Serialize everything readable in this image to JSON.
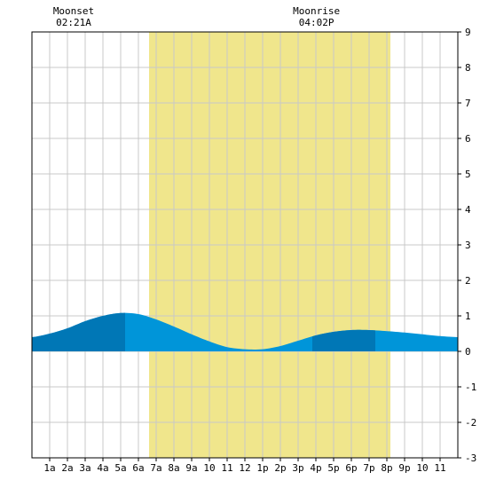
{
  "chart_data": {
    "type": "area",
    "title": "",
    "xlabel": "",
    "ylabel": "",
    "x_hours": [
      0,
      1,
      2,
      3,
      4,
      5,
      6,
      7,
      8,
      9,
      10,
      11,
      12,
      13,
      14,
      15,
      16,
      17,
      18,
      19,
      20,
      21,
      22,
      23,
      24
    ],
    "tide_height": [
      0.4,
      0.5,
      0.65,
      0.85,
      1.0,
      1.08,
      1.05,
      0.9,
      0.7,
      0.48,
      0.28,
      0.12,
      0.06,
      0.06,
      0.15,
      0.3,
      0.45,
      0.55,
      0.6,
      0.6,
      0.57,
      0.53,
      0.48,
      0.43,
      0.4
    ],
    "ylim": [
      -3,
      9
    ],
    "xlim": [
      0,
      24
    ],
    "y_ticks": [
      -3,
      -2,
      -1,
      0,
      1,
      2,
      3,
      4,
      5,
      6,
      7,
      8,
      9
    ],
    "x_tick_labels": [
      "1a",
      "2a",
      "3a",
      "4a",
      "5a",
      "6a",
      "7a",
      "8a",
      "9a",
      "10",
      "11",
      "12",
      "1p",
      "2p",
      "3p",
      "4p",
      "5p",
      "6p",
      "7p",
      "8p",
      "9p",
      "10",
      "11"
    ],
    "daylight_hours": [
      6.6,
      20.2
    ],
    "dark_bands_hours": [
      [
        0,
        5.25
      ],
      [
        15.8,
        19.35
      ]
    ],
    "grid": true,
    "moon_events": [
      {
        "label": "Moonset",
        "time": "02:21A",
        "hour": 2.35
      },
      {
        "label": "Moonrise",
        "time": "04:02P",
        "hour": 16.03
      }
    ],
    "colors": {
      "daylight": "#f0e68c",
      "tide_light": "#0095d9",
      "tide_dark": "#0077b6",
      "grid": "#c8c8c8",
      "axis": "#000000"
    }
  }
}
